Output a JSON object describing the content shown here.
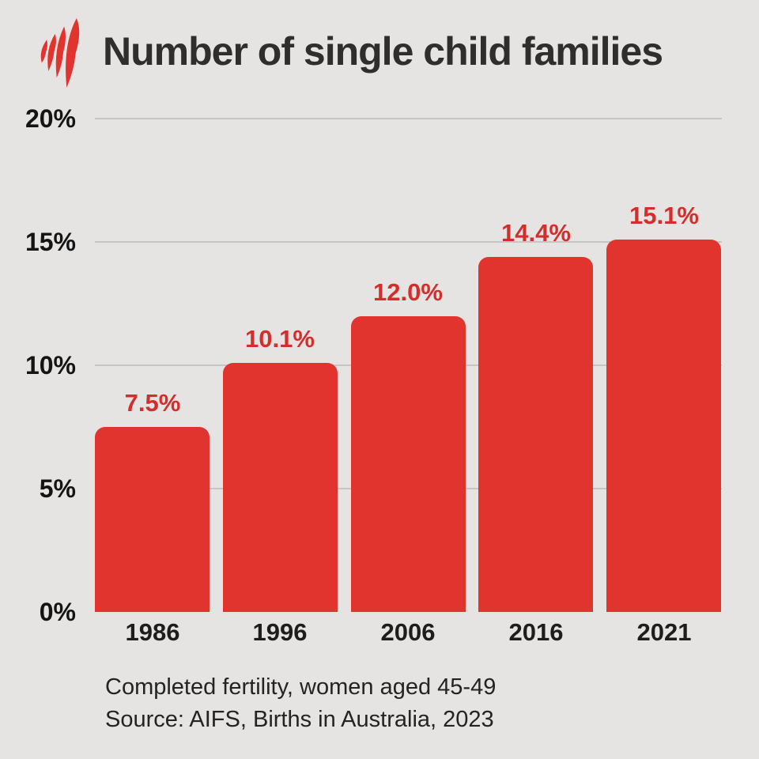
{
  "header": {
    "title": "Number of single child families",
    "logo": "sbs-logo"
  },
  "chart_data": {
    "type": "bar",
    "title": "Number of single child families",
    "categories": [
      "1986",
      "1996",
      "2006",
      "2016",
      "2021"
    ],
    "values": [
      7.5,
      10.1,
      12.0,
      14.4,
      15.1
    ],
    "value_labels": [
      "7.5%",
      "10.1%",
      "12.0%",
      "14.4%",
      "15.1%"
    ],
    "xlabel": "",
    "ylabel": "",
    "ylim": [
      0,
      20
    ],
    "yticks": [
      0,
      5,
      10,
      15,
      20
    ],
    "ytick_labels": [
      "0%",
      "5%",
      "10%",
      "15%",
      "20%"
    ],
    "grid": true,
    "legend": "none",
    "bar_color": "#e2342f",
    "value_label_color": "#d42e2c",
    "grid_color": "#c6c5c4",
    "tick_color": "#141414",
    "category_color": "#1d1d1b"
  },
  "footer": {
    "note": "Completed fertility, women aged 45-49",
    "source": "Source: AIFS, Births in Australia, 2023"
  },
  "colors": {
    "background": "#e5e4e2",
    "accent_red": "#e2342f",
    "title_text": "#2f2e2c"
  }
}
